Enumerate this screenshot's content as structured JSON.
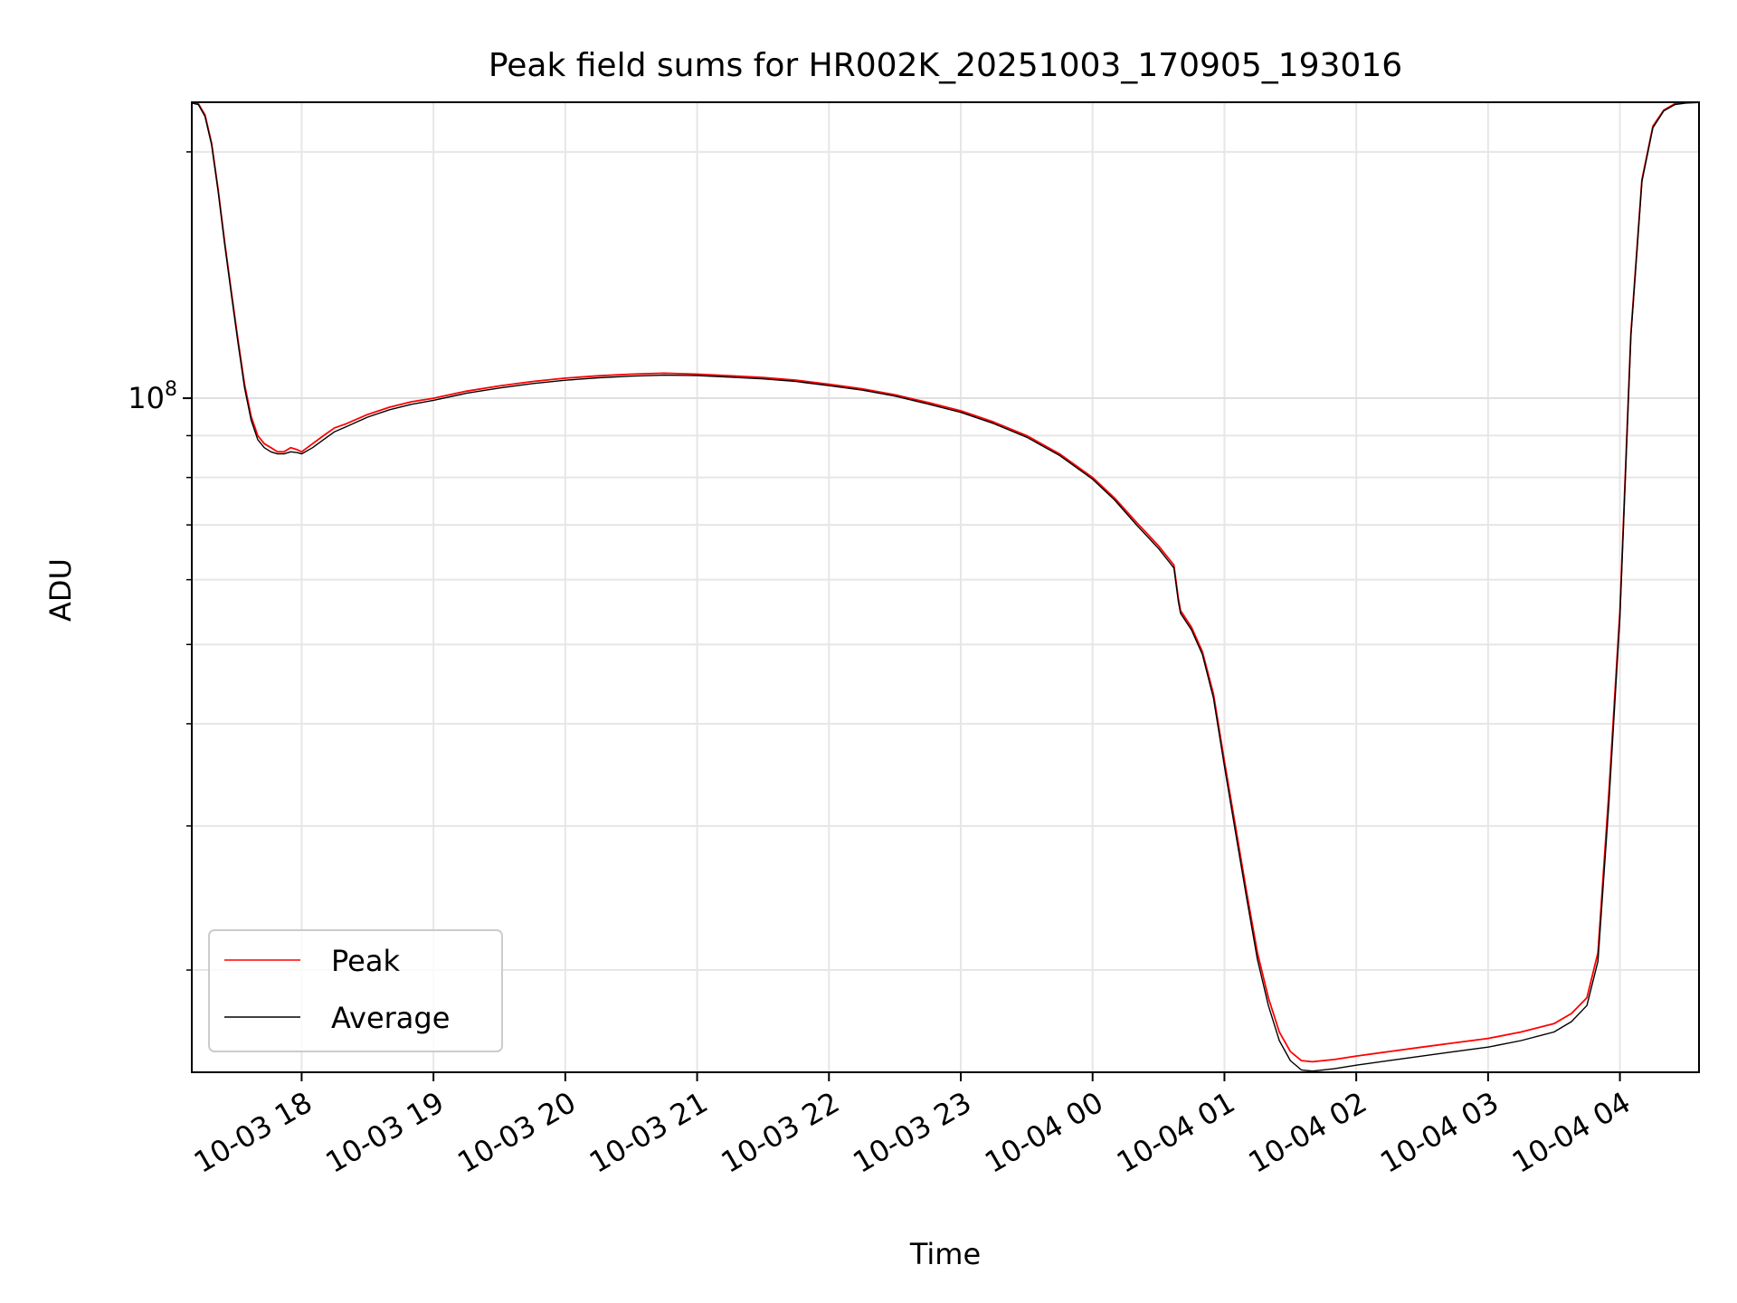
{
  "chart_data": {
    "type": "line",
    "title": "Peak field sums for HR002K_20251003_170905_193016",
    "xlabel": "Time",
    "ylabel": "ADU",
    "y_scale": "log",
    "ylim": [
      15000000,
      230000000
    ],
    "xlim": [
      "2025-10-03 17:10",
      "2025-10-04 04:36"
    ],
    "y_major_tick_labels": [
      {
        "value": 100000000,
        "base": "10",
        "exponent": "8"
      }
    ],
    "y_minor_ticks": [
      20000000,
      30000000,
      40000000,
      50000000,
      60000000,
      70000000,
      80000000,
      90000000,
      200000000
    ],
    "x_tick_labels": [
      {
        "value": "2025-10-03 18:00",
        "label": "10-03 18"
      },
      {
        "value": "2025-10-03 19:00",
        "label": "10-03 19"
      },
      {
        "value": "2025-10-03 20:00",
        "label": "10-03 20"
      },
      {
        "value": "2025-10-03 21:00",
        "label": "10-03 21"
      },
      {
        "value": "2025-10-03 22:00",
        "label": "10-03 22"
      },
      {
        "value": "2025-10-03 23:00",
        "label": "10-03 23"
      },
      {
        "value": "2025-10-04 00:00",
        "label": "10-04 00"
      },
      {
        "value": "2025-10-04 01:00",
        "label": "10-04 01"
      },
      {
        "value": "2025-10-04 02:00",
        "label": "10-04 02"
      },
      {
        "value": "2025-10-04 03:00",
        "label": "10-04 03"
      },
      {
        "value": "2025-10-04 04:00",
        "label": "10-04 04"
      }
    ],
    "grid": true,
    "legend_position": "lower-left",
    "series": [
      {
        "name": "Peak",
        "color": "#ff0000",
        "x": [
          "2025-10-03 17:10",
          "2025-10-03 17:13",
          "2025-10-03 17:16",
          "2025-10-03 17:19",
          "2025-10-03 17:22",
          "2025-10-03 17:25",
          "2025-10-03 17:28",
          "2025-10-03 17:31",
          "2025-10-03 17:34",
          "2025-10-03 17:37",
          "2025-10-03 17:40",
          "2025-10-03 17:43",
          "2025-10-03 17:46",
          "2025-10-03 17:49",
          "2025-10-03 17:52",
          "2025-10-03 17:55",
          "2025-10-03 17:58",
          "2025-10-03 18:00",
          "2025-10-03 18:05",
          "2025-10-03 18:10",
          "2025-10-03 18:15",
          "2025-10-03 18:20",
          "2025-10-03 18:30",
          "2025-10-03 18:40",
          "2025-10-03 18:50",
          "2025-10-03 19:00",
          "2025-10-03 19:15",
          "2025-10-03 19:30",
          "2025-10-03 19:45",
          "2025-10-03 20:00",
          "2025-10-03 20:15",
          "2025-10-03 20:30",
          "2025-10-03 20:45",
          "2025-10-03 21:00",
          "2025-10-03 21:15",
          "2025-10-03 21:30",
          "2025-10-03 21:45",
          "2025-10-03 22:00",
          "2025-10-03 22:15",
          "2025-10-03 22:30",
          "2025-10-03 22:45",
          "2025-10-03 23:00",
          "2025-10-03 23:15",
          "2025-10-03 23:30",
          "2025-10-03 23:45",
          "2025-10-04 00:00",
          "2025-10-04 00:10",
          "2025-10-04 00:20",
          "2025-10-04 00:30",
          "2025-10-04 00:35",
          "2025-10-04 00:37",
          "2025-10-04 00:39",
          "2025-10-04 00:40",
          "2025-10-04 00:45",
          "2025-10-04 00:50",
          "2025-10-04 00:55",
          "2025-10-04 01:00",
          "2025-10-04 01:05",
          "2025-10-04 01:10",
          "2025-10-04 01:15",
          "2025-10-04 01:20",
          "2025-10-04 01:25",
          "2025-10-04 01:30",
          "2025-10-04 01:35",
          "2025-10-04 01:40",
          "2025-10-04 01:45",
          "2025-10-04 01:50",
          "2025-10-04 02:00",
          "2025-10-04 02:15",
          "2025-10-04 02:30",
          "2025-10-04 02:45",
          "2025-10-04 03:00",
          "2025-10-04 03:15",
          "2025-10-04 03:30",
          "2025-10-04 03:38",
          "2025-10-04 03:45",
          "2025-10-04 03:50",
          "2025-10-04 03:55",
          "2025-10-04 04:00",
          "2025-10-04 04:05",
          "2025-10-04 04:10",
          "2025-10-04 04:15",
          "2025-10-04 04:20",
          "2025-10-04 04:25",
          "2025-10-04 04:30",
          "2025-10-04 04:36"
        ],
        "y": [
          230000000,
          229000000,
          222000000,
          205000000,
          180000000,
          155000000,
          135000000,
          118000000,
          104000000,
          95000000,
          90000000,
          88000000,
          87000000,
          86000000,
          86000000,
          87000000,
          86500000,
          86000000,
          88000000,
          90000000,
          92000000,
          93000000,
          95500000,
          97500000,
          99000000,
          100000000,
          102000000,
          103500000,
          104800000,
          105800000,
          106500000,
          107000000,
          107300000,
          107000000,
          106500000,
          106000000,
          105200000,
          104000000,
          102700000,
          101000000,
          98800000,
          96500000,
          93500000,
          90000000,
          85500000,
          80000000,
          75500000,
          70500000,
          66000000,
          63500000,
          62500000,
          57000000,
          55000000,
          52500000,
          49000000,
          43500000,
          36000000,
          30000000,
          25000000,
          21000000,
          18500000,
          16800000,
          15900000,
          15500000,
          15450000,
          15500000,
          15550000,
          15700000,
          15900000,
          16100000,
          16300000,
          16500000,
          16800000,
          17200000,
          17700000,
          18500000,
          21000000,
          33000000,
          55000000,
          120000000,
          185000000,
          215000000,
          225000000,
          229000000,
          230000000,
          230000000
        ]
      },
      {
        "name": "Average",
        "color": "#000000",
        "x": [
          "2025-10-03 17:10",
          "2025-10-03 17:13",
          "2025-10-03 17:16",
          "2025-10-03 17:19",
          "2025-10-03 17:22",
          "2025-10-03 17:25",
          "2025-10-03 17:28",
          "2025-10-03 17:31",
          "2025-10-03 17:34",
          "2025-10-03 17:37",
          "2025-10-03 17:40",
          "2025-10-03 17:43",
          "2025-10-03 17:46",
          "2025-10-03 17:49",
          "2025-10-03 17:52",
          "2025-10-03 17:55",
          "2025-10-03 17:58",
          "2025-10-03 18:00",
          "2025-10-03 18:05",
          "2025-10-03 18:10",
          "2025-10-03 18:15",
          "2025-10-03 18:20",
          "2025-10-03 18:30",
          "2025-10-03 18:40",
          "2025-10-03 18:50",
          "2025-10-03 19:00",
          "2025-10-03 19:15",
          "2025-10-03 19:30",
          "2025-10-03 19:45",
          "2025-10-03 20:00",
          "2025-10-03 20:15",
          "2025-10-03 20:30",
          "2025-10-03 20:45",
          "2025-10-03 21:00",
          "2025-10-03 21:15",
          "2025-10-03 21:30",
          "2025-10-03 21:45",
          "2025-10-03 22:00",
          "2025-10-03 22:15",
          "2025-10-03 22:30",
          "2025-10-03 22:45",
          "2025-10-03 23:00",
          "2025-10-03 23:15",
          "2025-10-03 23:30",
          "2025-10-03 23:45",
          "2025-10-04 00:00",
          "2025-10-04 00:10",
          "2025-10-04 00:20",
          "2025-10-04 00:30",
          "2025-10-04 00:35",
          "2025-10-04 00:37",
          "2025-10-04 00:39",
          "2025-10-04 00:40",
          "2025-10-04 00:45",
          "2025-10-04 00:50",
          "2025-10-04 00:55",
          "2025-10-04 01:00",
          "2025-10-04 01:05",
          "2025-10-04 01:10",
          "2025-10-04 01:15",
          "2025-10-04 01:20",
          "2025-10-04 01:25",
          "2025-10-04 01:30",
          "2025-10-04 01:35",
          "2025-10-04 01:40",
          "2025-10-04 01:45",
          "2025-10-04 01:50",
          "2025-10-04 02:00",
          "2025-10-04 02:15",
          "2025-10-04 02:30",
          "2025-10-04 02:45",
          "2025-10-04 03:00",
          "2025-10-04 03:15",
          "2025-10-04 03:30",
          "2025-10-04 03:38",
          "2025-10-04 03:45",
          "2025-10-04 03:50",
          "2025-10-04 03:55",
          "2025-10-04 04:00",
          "2025-10-04 04:05",
          "2025-10-04 04:10",
          "2025-10-04 04:15",
          "2025-10-04 04:20",
          "2025-10-04 04:25",
          "2025-10-04 04:30",
          "2025-10-04 04:36"
        ],
        "y": [
          229500000,
          228500000,
          221000000,
          204000000,
          179000000,
          154000000,
          134000000,
          117000000,
          103000000,
          94000000,
          89000000,
          87000000,
          86000000,
          85500000,
          85500000,
          86000000,
          85800000,
          85500000,
          87000000,
          89000000,
          91000000,
          92200000,
          94800000,
          96800000,
          98300000,
          99400000,
          101400000,
          102900000,
          104200000,
          105200000,
          105900000,
          106400000,
          106700000,
          106600000,
          106100000,
          105600000,
          104800000,
          103600000,
          102300000,
          100600000,
          98400000,
          96100000,
          93100000,
          89600000,
          85100000,
          79600000,
          75100000,
          70000000,
          65500000,
          63000000,
          62000000,
          56500000,
          54600000,
          52100000,
          48600000,
          43000000,
          35500000,
          29500000,
          24600000,
          20600000,
          18100000,
          16400000,
          15500000,
          15100000,
          15050000,
          15100000,
          15150000,
          15300000,
          15500000,
          15700000,
          15900000,
          16100000,
          16400000,
          16800000,
          17300000,
          18100000,
          20500000,
          32000000,
          54000000,
          119000000,
          184000000,
          214000000,
          224500000,
          228500000,
          229500000,
          229800000
        ]
      }
    ]
  }
}
